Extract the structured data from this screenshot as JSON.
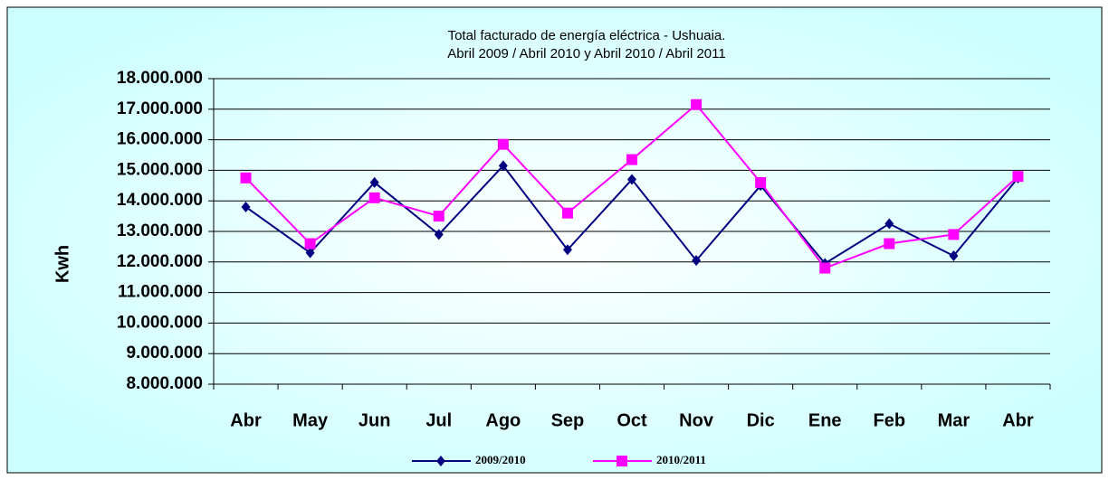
{
  "chart_data": {
    "type": "line",
    "title": "Total facturado de energía eléctrica - Ushuaia.",
    "subtitle": "Abril 2009 / Abril 2010 y Abril 2010 / Abril 2011",
    "y_label": "Kwh",
    "categories": [
      "Abr",
      "May",
      "Jun",
      "Jul",
      "Ago",
      "Sep",
      "Oct",
      "Nov",
      "Dic",
      "Ene",
      "Feb",
      "Mar",
      "Abr"
    ],
    "series": [
      {
        "name": "2009/2010",
        "color": "#000080",
        "marker": "diamond",
        "values": [
          13800000,
          12300000,
          14600000,
          12900000,
          15150000,
          12400000,
          14700000,
          12050000,
          14500000,
          11950000,
          13250000,
          12200000,
          14750000
        ]
      },
      {
        "name": "2010/2011",
        "color": "#ff00ff",
        "marker": "square",
        "values": [
          14750000,
          12600000,
          14100000,
          13500000,
          15850000,
          13600000,
          15350000,
          17150000,
          14600000,
          11800000,
          12600000,
          12900000,
          14800000
        ]
      }
    ],
    "ylim": [
      8000000,
      18000000
    ],
    "yticks": [
      {
        "value": 8000000,
        "label": "8.000.000"
      },
      {
        "value": 9000000,
        "label": "9.000.000"
      },
      {
        "value": 10000000,
        "label": "10.000.000"
      },
      {
        "value": 11000000,
        "label": "11.000.000"
      },
      {
        "value": 12000000,
        "label": "12.000.000"
      },
      {
        "value": 13000000,
        "label": "13.000.000"
      },
      {
        "value": 14000000,
        "label": "14.000.000"
      },
      {
        "value": 15000000,
        "label": "15.000.000"
      },
      {
        "value": 16000000,
        "label": "16.000.000"
      },
      {
        "value": 17000000,
        "label": "17.000.000"
      },
      {
        "value": 18000000,
        "label": "18.000.000"
      }
    ],
    "grid": true,
    "legend": "bottom"
  }
}
